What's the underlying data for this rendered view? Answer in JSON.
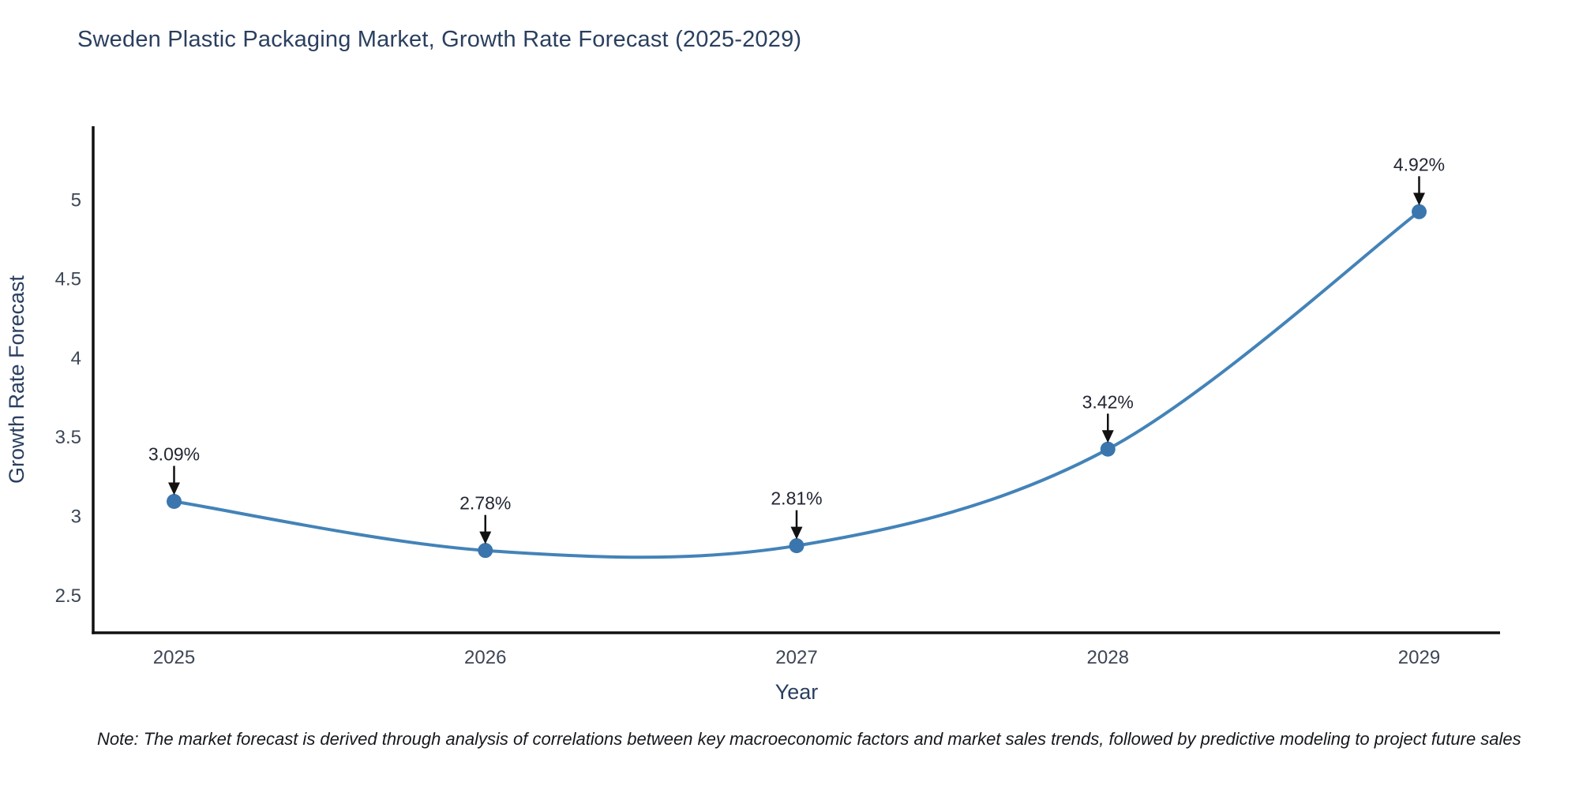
{
  "title": "Sweden Plastic Packaging Market, Growth Rate Forecast (2025-2029)",
  "note": "Note: The market forecast is derived through analysis of correlations between key macroeconomic factors and market sales trends, followed by predictive modeling to project future sales",
  "chart_data": {
    "type": "line",
    "title": "Sweden Plastic Packaging Market, Growth Rate Forecast (2025-2029)",
    "x": [
      2025,
      2026,
      2027,
      2028,
      2029
    ],
    "y": [
      3.09,
      2.78,
      2.81,
      3.42,
      4.92
    ],
    "point_labels": [
      "3.09%",
      "2.78%",
      "2.81%",
      "3.42%",
      "4.92%"
    ],
    "xlabel": "Year",
    "ylabel": "Growth Rate Forecast",
    "xticks": [
      2025,
      2026,
      2027,
      2028,
      2029
    ],
    "yticks": [
      2.5,
      3,
      3.5,
      4,
      4.5,
      5
    ],
    "xlim": [
      2024.74,
      2029.26
    ],
    "ylim": [
      2.26,
      5.46
    ],
    "line_shape": "spline",
    "grid": false,
    "legend": false,
    "colors": {
      "line": "#4383b8",
      "marker": "#3a76ad",
      "axis": "#111111",
      "tick_text": "#3d4656",
      "axis_title_text": "#2a3f5f",
      "annotation_text": "#222633",
      "arrow": "#111111",
      "background": "#ffffff"
    }
  }
}
